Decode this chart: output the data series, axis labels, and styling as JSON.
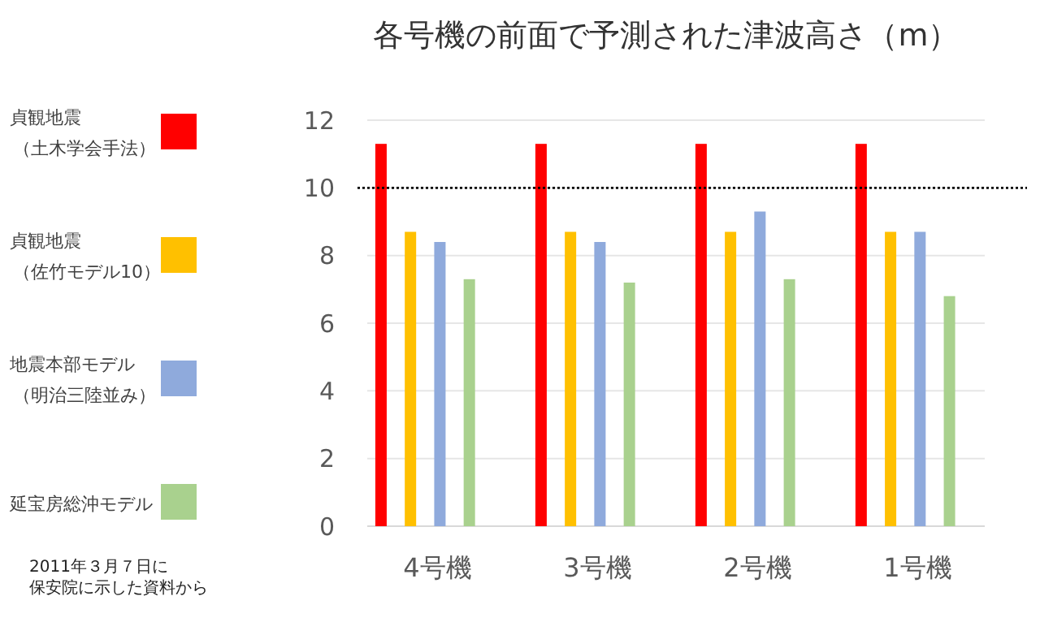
{
  "chart_data": {
    "type": "bar",
    "title": "各号機の前面で予測された津波高さ（m）",
    "categories": [
      "4号機",
      "3号機",
      "2号機",
      "1号機"
    ],
    "series": [
      {
        "name": "貞観地震（土木学会手法）",
        "color": "#ff0000",
        "values": [
          11.3,
          11.3,
          11.3,
          11.3
        ]
      },
      {
        "name": "貞観地震（佐竹モデル10）",
        "color": "#ffc000",
        "values": [
          8.7,
          8.7,
          8.7,
          8.7
        ]
      },
      {
        "name": "地震本部モデル（明治三陸並み）",
        "color": "#8faadc",
        "values": [
          8.4,
          8.4,
          9.3,
          8.7
        ]
      },
      {
        "name": "延宝房総沖モデル",
        "color": "#a9d18e",
        "values": [
          7.3,
          7.2,
          7.3,
          6.8
        ]
      }
    ],
    "ylim": [
      0,
      12
    ],
    "yticks": [
      0,
      2,
      4,
      6,
      8,
      10,
      12
    ],
    "grid": "y",
    "legend": "left",
    "ref_lines": [
      {
        "axis": "y",
        "value": 10,
        "line_style": "dotted",
        "color": "#000000"
      }
    ],
    "annotations": [
      "2011年３月７日に保安院に示した資料から"
    ]
  }
}
